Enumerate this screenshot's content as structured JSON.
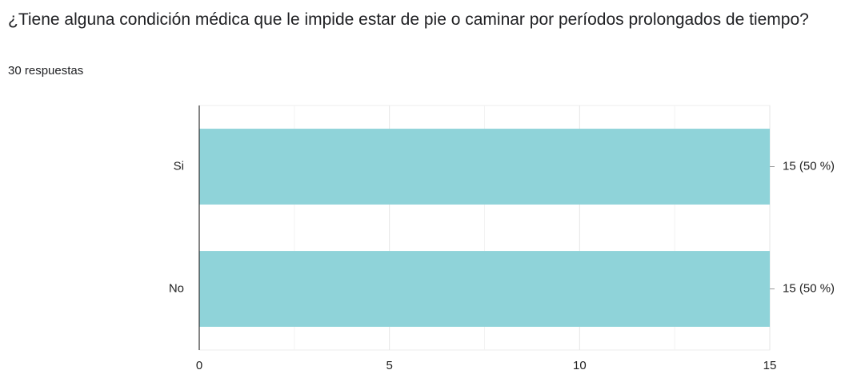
{
  "chart_data": {
    "type": "hbar",
    "title": "¿Tiene alguna condición médica que le impide estar de pie o caminar por períodos prolongados de tiempo?",
    "subtitle": "30 respuestas",
    "categories": [
      "Si",
      "No"
    ],
    "values": [
      15,
      15
    ],
    "value_labels": [
      "15 (50 %)",
      "15 (50 %)"
    ],
    "color": "#8fd3d9",
    "xlim": [
      0,
      15
    ],
    "xticks": [
      0,
      5,
      10,
      15
    ],
    "minor_xticks": [
      2.5,
      7.5,
      12.5
    ],
    "grid": true
  }
}
